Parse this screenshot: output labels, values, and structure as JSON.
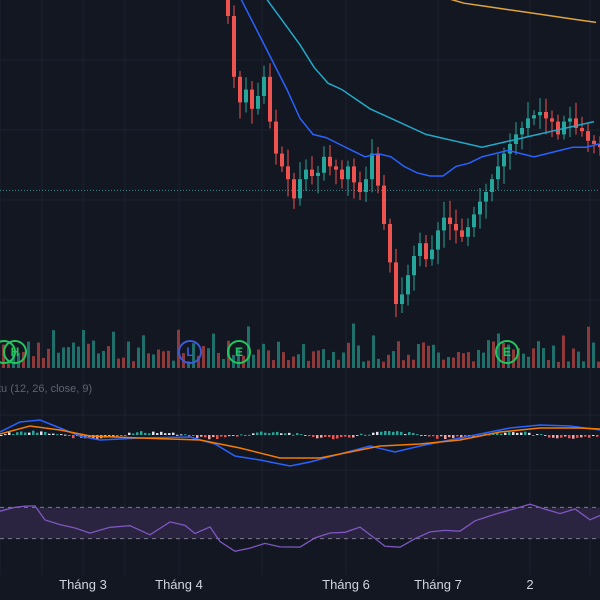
{
  "chart_data": [
    {
      "type": "candlestick",
      "panel": "price",
      "x_start": 0,
      "x_end": 600,
      "ylim": [
        0,
        100
      ],
      "candles_open_close_high_low_estimated": true,
      "horizontal_reference_line": 40.5,
      "ma_fast_values": [
        108,
        104,
        96,
        88,
        80,
        72,
        63,
        58,
        57,
        55,
        53,
        51,
        52,
        51,
        48,
        46,
        45,
        45,
        48,
        49,
        51,
        52,
        53,
        52,
        51,
        52,
        53,
        54,
        54,
        55
      ],
      "ma_slow_values": [
        110,
        108,
        104,
        98,
        92,
        86,
        79,
        74,
        72,
        69,
        66,
        64,
        62,
        60,
        58,
        57,
        56,
        55,
        54,
        55,
        56,
        57,
        58,
        59,
        60,
        61,
        62
      ],
      "long_ma_values": [
        102,
        101,
        99,
        98,
        97,
        96,
        95,
        94,
        93
      ],
      "colors": {
        "up": "#26a69a",
        "down": "#ef5350",
        "ma_fast": "#2962ff",
        "ma_slow": "#22a9c9",
        "long_ma": "#e0a43c",
        "ref_line": "#2e8b8b"
      }
    },
    {
      "type": "bar",
      "panel": "volume",
      "markers": [
        {
          "label": "H",
          "color": "#22c55e"
        },
        {
          "label": "L",
          "color": "#3b5bdb"
        },
        {
          "label": "E",
          "color": "#22c55e"
        },
        {
          "label": "E",
          "color": "#22c55e"
        }
      ]
    },
    {
      "type": "line",
      "panel": "macd",
      "legend_text": "tu (12, 26, close, 9)",
      "colors": {
        "macd": "#2962ff",
        "signal": "#f57c00",
        "hist_up": "#26a69a",
        "hist_down": "#ef5350",
        "hist_light": "#e0e3eb"
      }
    },
    {
      "type": "line",
      "panel": "rsi",
      "upper_band": 70,
      "lower_band": 30,
      "colors": {
        "line": "#7e57c2",
        "band_fill": "#2b2440",
        "band_line": "#787b86"
      }
    },
    {
      "type": "axis",
      "panel": "time-axis",
      "tick_labels": [
        "Tháng 3",
        "Tháng 4",
        "Tháng 6",
        "Tháng 7",
        "2"
      ]
    }
  ]
}
